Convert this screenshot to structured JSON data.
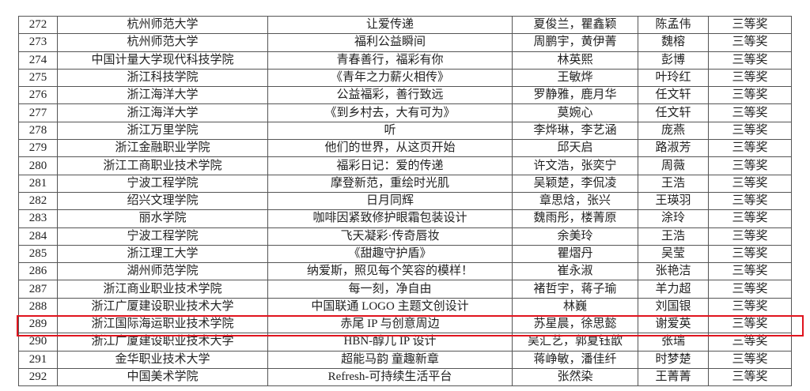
{
  "table": {
    "rows": [
      [
        "272",
        "杭州师范大学",
        "让爱传递",
        "夏俊兰，瞿鑫颖",
        "陈孟伟",
        "三等奖"
      ],
      [
        "273",
        "杭州师范大学",
        "福利公益瞬间",
        "周鹏宇，黄伊菁",
        "魏榕",
        "三等奖"
      ],
      [
        "274",
        "中国计量大学现代科技学院",
        "青春善行，福彩有你",
        "林英熙",
        "彭博",
        "三等奖"
      ],
      [
        "275",
        "浙江科技学院",
        "《青年之力薪火相传》",
        "王敏烨",
        "叶玲红",
        "三等奖"
      ],
      [
        "276",
        "浙江海洋大学",
        "公益福彩，善行致远",
        "罗静雅，鹿月华",
        "任文轩",
        "三等奖"
      ],
      [
        "277",
        "浙江海洋大学",
        "《到乡村去，大有可为》",
        "莫婉心",
        "任文轩",
        "三等奖"
      ],
      [
        "278",
        "浙江万里学院",
        "听",
        "李烨琳，李艺涵",
        "庞燕",
        "三等奖"
      ],
      [
        "279",
        "浙江金融职业学院",
        "他们的世界，从这页开始",
        "邱天启",
        "路淑芳",
        "三等奖"
      ],
      [
        "280",
        "浙江工商职业技术学院",
        "福彩日记：爱的传递",
        "许文浩，张奕宁",
        "周薇",
        "三等奖"
      ],
      [
        "281",
        "宁波工程学院",
        "摩登新范，重绘时光肌",
        "吴颖楚，李侃凌",
        "王浩",
        "三等奖"
      ],
      [
        "282",
        "绍兴文理学院",
        "日月同辉",
        "章思焓，张兴",
        "王瑛羽",
        "三等奖"
      ],
      [
        "283",
        "丽水学院",
        "咖啡因紧致修护眼霜包装设计",
        "魏雨彤，楼菁原",
        "涂玲",
        "三等奖"
      ],
      [
        "284",
        "宁波工程学院",
        "飞天凝彩·传奇唇妆",
        "余美玲",
        "王浩",
        "三等奖"
      ],
      [
        "285",
        "浙江理工大学",
        "《甜趣守护盾》",
        "瞿熠丹",
        "吴莹",
        "三等奖"
      ],
      [
        "286",
        "湖州师范学院",
        "纳爱斯，照见每个笑容的模样！",
        "崔永淑",
        "张艳洁",
        "三等奖"
      ],
      [
        "287",
        "浙江商业职业技术学院",
        "每一刻，净自由",
        "褚哲宇，蒋子瑜",
        "羊力超",
        "三等奖"
      ],
      [
        "288",
        "浙江广厦建设职业技术大学",
        "中国联通 LOGO 主题文创设计",
        "林巍",
        "刘国银",
        "三等奖"
      ],
      [
        "289",
        "浙江国际海运职业技术学院",
        "赤尾 IP 与创意周边",
        "苏星晨，徐思懿",
        "谢爱英",
        "三等奖"
      ],
      [
        "290",
        "浙江广厦建设职业技术大学",
        "HBN-醇儿 IP 设计",
        "吴汇艺，郭夏钰歆",
        "张瑞",
        "三等奖"
      ],
      [
        "291",
        "金华职业技术大学",
        "超能马韵 童趣新章",
        "蒋峥敏，潘佳纤",
        "时梦楚",
        "三等奖"
      ],
      [
        "292",
        "中国美术学院",
        "Refresh-可持续生活平台",
        "张然染",
        "王菁菁",
        "三等奖"
      ]
    ],
    "highlighted_row": "289",
    "highlight_color": "#e0141e"
  }
}
